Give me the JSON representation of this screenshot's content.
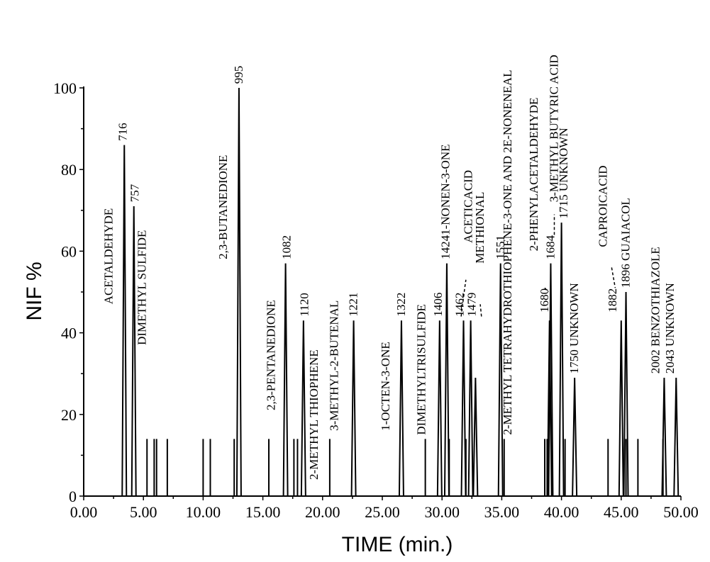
{
  "chart_data": {
    "type": "line",
    "xlabel": "TIME (min.)",
    "ylabel": "NIF %",
    "xlim": [
      0,
      50
    ],
    "ylim": [
      0,
      100
    ],
    "x_ticks": [
      "0.00",
      "5.00",
      "10.00",
      "15.00",
      "20.00",
      "25.00",
      "30.00",
      "35.00",
      "40.00",
      "45.00",
      "50.00"
    ],
    "y_ticks": [
      "0",
      "20",
      "40",
      "60",
      "80",
      "100"
    ],
    "minor_peaks": [
      {
        "x": 5.3,
        "y": 14
      },
      {
        "x": 5.9,
        "y": 14
      },
      {
        "x": 6.1,
        "y": 14
      },
      {
        "x": 7.0,
        "y": 14
      },
      {
        "x": 10.0,
        "y": 14
      },
      {
        "x": 10.6,
        "y": 14
      },
      {
        "x": 12.6,
        "y": 14
      },
      {
        "x": 15.5,
        "y": 14
      },
      {
        "x": 17.6,
        "y": 14
      },
      {
        "x": 17.9,
        "y": 14
      },
      {
        "x": 20.6,
        "y": 14
      },
      {
        "x": 28.6,
        "y": 14
      },
      {
        "x": 30.6,
        "y": 14
      },
      {
        "x": 32.0,
        "y": 14
      },
      {
        "x": 35.2,
        "y": 14
      },
      {
        "x": 38.6,
        "y": 14
      },
      {
        "x": 38.8,
        "y": 14
      },
      {
        "x": 38.9,
        "y": 14
      },
      {
        "x": 40.3,
        "y": 14
      },
      {
        "x": 43.9,
        "y": 14
      },
      {
        "x": 45.4,
        "y": 14
      },
      {
        "x": 46.4,
        "y": 14
      },
      {
        "x": 48.5,
        "y": 14
      }
    ],
    "peaks": [
      {
        "x": 3.4,
        "y": 86,
        "ri": "716",
        "name": "ACETALDEHYDE"
      },
      {
        "x": 4.2,
        "y": 71,
        "ri": "757",
        "name": "DIMETHYL SULFIDE"
      },
      {
        "x": 13.0,
        "y": 100,
        "ri": "995",
        "name": "2,3-BUTANEDIONE"
      },
      {
        "x": 16.9,
        "y": 57,
        "ri": "1082",
        "name": "2,3-PENTANEDIONE"
      },
      {
        "x": 18.4,
        "y": 43,
        "ri": "1120",
        "name": "2-METHYL THIOPHENE"
      },
      {
        "x": 22.6,
        "y": 43,
        "ri": "1221",
        "name": "3-METHYL-2-BUTENAL"
      },
      {
        "x": 26.6,
        "y": 43,
        "ri": "1322",
        "name": "1-OCTEN-3-ONE"
      },
      {
        "x": 29.8,
        "y": 43,
        "ri": "1406",
        "name": "DIMETHYLTRISULFIDE"
      },
      {
        "x": 30.4,
        "y": 57,
        "ri": "1424",
        "name": "1-NONEN-3-ONE"
      },
      {
        "x": 31.8,
        "y": 43,
        "ri": "1462",
        "name": "ACETICACID"
      },
      {
        "x": 32.4,
        "y": 43,
        "ri": "1479",
        "name": "METHIONAL"
      },
      {
        "x": 32.8,
        "y": 29,
        "ri": "",
        "name": ""
      },
      {
        "x": 34.9,
        "y": 57,
        "ri": "1551",
        "name": "2-METHYL TETRAHYDROTHIOPHENE-3-ONE AND 2E-NONENEAL"
      },
      {
        "x": 39.0,
        "y": 43,
        "ri": "1680",
        "name": "2-PHENYLACETALDEHYDE"
      },
      {
        "x": 39.1,
        "y": 57,
        "ri": "1684",
        "name": "3-METHYL BUTYRIC ACID"
      },
      {
        "x": 40.0,
        "y": 67,
        "ri": "1715",
        "name": "UNKNOWN"
      },
      {
        "x": 41.1,
        "y": 29,
        "ri": "1750",
        "name": "UNKNOWN"
      },
      {
        "x": 45.0,
        "y": 43,
        "ri": "1882",
        "name": "CAPROICACID"
      },
      {
        "x": 45.4,
        "y": 50,
        "ri": "1896",
        "name": "GUAIACOL"
      },
      {
        "x": 48.6,
        "y": 29,
        "ri": "2002",
        "name": "BENZOTHIAZOLE"
      },
      {
        "x": 49.6,
        "y": 29,
        "ri": "2043",
        "name": "UNKNOWN"
      }
    ],
    "labels": [
      {
        "text": "716",
        "x": 3.6,
        "y": 87
      },
      {
        "text": "ACETALDEHYDE",
        "x": 2.4,
        "y": 47
      },
      {
        "text": "757",
        "x": 4.6,
        "y": 72
      },
      {
        "text": "DIMETHYL SULFIDE",
        "x": 5.2,
        "y": 37
      },
      {
        "text": "2,3-BUTANEDIONE",
        "x": 12.0,
        "y": 58
      },
      {
        "text": "995",
        "x": 13.3,
        "y": 101
      },
      {
        "text": "2,3-PENTANEDIONE",
        "x": 16.0,
        "y": 21
      },
      {
        "text": "1082",
        "x": 17.3,
        "y": 58
      },
      {
        "text": "1120",
        "x": 18.8,
        "y": 44
      },
      {
        "text": "2-METHYL THIOPHENE",
        "x": 19.6,
        "y": 4
      },
      {
        "text": "3-METHYL-2-BUTENAL",
        "x": 21.3,
        "y": 16
      },
      {
        "text": "1221",
        "x": 22.9,
        "y": 44
      },
      {
        "text": "1-OCTEN-3-ONE",
        "x": 25.6,
        "y": 16
      },
      {
        "text": "1322",
        "x": 26.9,
        "y": 44
      },
      {
        "text": "DIMETHYLTRISULFIDE",
        "x": 28.6,
        "y": 15
      },
      {
        "text": "1406",
        "x": 30.0,
        "y": 44
      },
      {
        "text": "14241-NONEN-3-ONE",
        "x": 30.6,
        "y": 58
      },
      {
        "text": "ACETICACID",
        "x": 32.5,
        "y": 62
      },
      {
        "text": "1462",
        "x": 31.8,
        "y": 44
      },
      {
        "text": "METHIONAL",
        "x": 33.5,
        "y": 57
      },
      {
        "text": "1479",
        "x": 32.8,
        "y": 44
      },
      {
        "text": "1551",
        "x": 35.2,
        "y": 58
      },
      {
        "text": "2-METHYL TETRAHYDROTHIOPHENE-3-ONE AND 2E-NONENEAL",
        "x": 35.8,
        "y": 15
      },
      {
        "text": "2-PHENYLACETALDEHYDE",
        "x": 38.0,
        "y": 60
      },
      {
        "text": "1680",
        "x": 38.9,
        "y": 45
      },
      {
        "text": "1684",
        "x": 39.4,
        "y": 58
      },
      {
        "text": "3-METHYL BUTYRIC ACID",
        "x": 39.7,
        "y": 72
      },
      {
        "text": "1715 UNKNOWN",
        "x": 40.5,
        "y": 68
      },
      {
        "text": "1750 UNKNOWN",
        "x": 41.4,
        "y": 30
      },
      {
        "text": "CAPROICACID",
        "x": 43.8,
        "y": 61
      },
      {
        "text": "1882",
        "x": 44.6,
        "y": 45
      },
      {
        "text": "1896 GUAIACOL",
        "x": 45.7,
        "y": 51
      },
      {
        "text": "2002 BENZOTHIAZOLE",
        "x": 48.2,
        "y": 30
      },
      {
        "text": "2043 UNKNOWN",
        "x": 49.4,
        "y": 30
      }
    ],
    "leaders": [
      [
        [
          31.6,
          44
        ],
        [
          31.9,
          51
        ],
        [
          32.0,
          53
        ]
      ],
      [
        [
          33.3,
          44
        ],
        [
          33.2,
          47
        ]
      ],
      [
        [
          38.6,
          51
        ],
        [
          38.9,
          50
        ]
      ],
      [
        [
          39.4,
          64
        ],
        [
          39.4,
          69
        ]
      ],
      [
        [
          44.2,
          56
        ],
        [
          44.5,
          51
        ]
      ]
    ]
  }
}
